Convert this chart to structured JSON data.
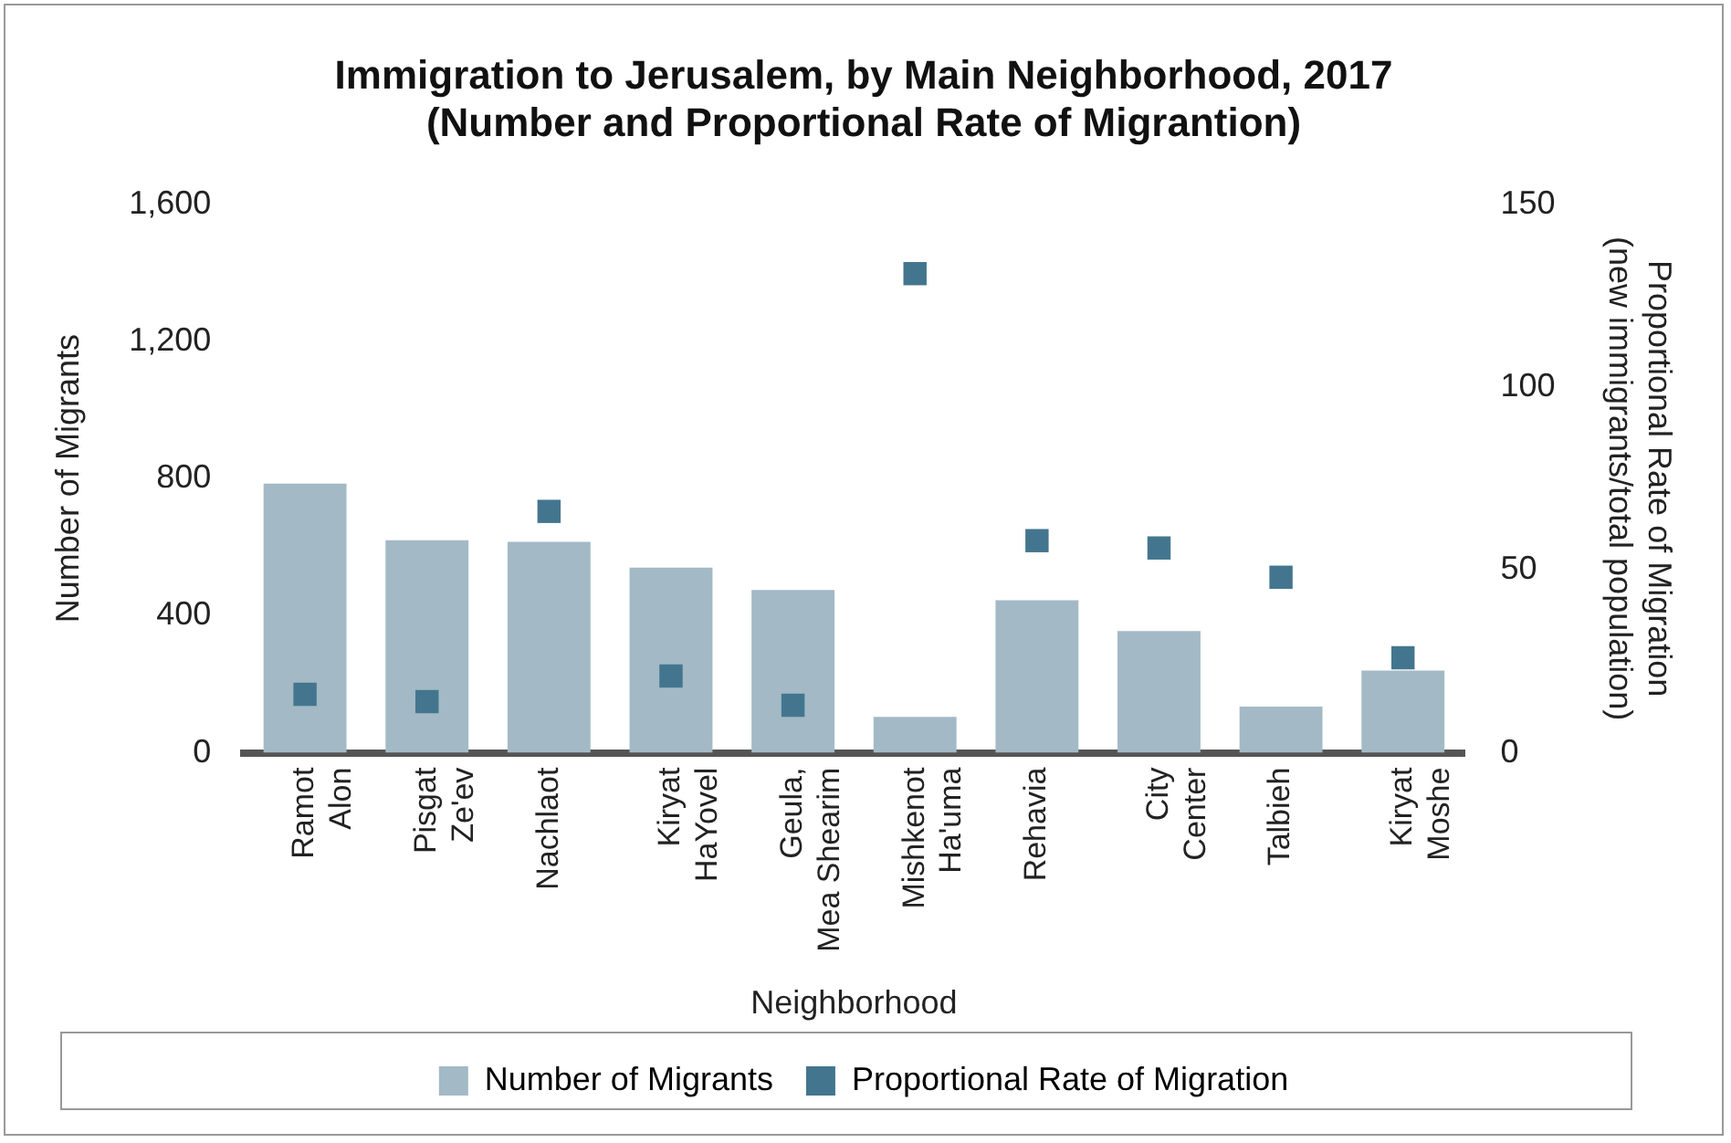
{
  "chart_data": {
    "type": "bar",
    "title": "Immigration to Jerusalem, by Main Neighborhood, 2017",
    "subtitle": "(Number and Proportional Rate of Migrantion)",
    "xlabel": "Neighborhood",
    "ylabel": "Number of Migrants",
    "y2label": "Proportional Rate of Migration (new immigrants/total population)",
    "categories": [
      "Ramot Alon",
      "Pisgat Ze'ev",
      "Nachlaot",
      "Kiryat HaYovel",
      "Geula, Mea Shearim",
      "Mishkenot Ha'uma",
      "Rehavia",
      "City Center",
      "Talbieh",
      "Kiryat Moshe"
    ],
    "series": [
      {
        "name": "Number of Migrants",
        "color": "#a3b9c5",
        "values": [
          785,
          620,
          615,
          540,
          475,
          105,
          445,
          355,
          135,
          240
        ]
      },
      {
        "name": "Proportional Rate of Migration",
        "type": "scatter",
        "axis": "y2",
        "color": "#43768e",
        "x": [
          "Ramot Alon",
          "Pisgat Ze'ev",
          "Nachlaot",
          "Kiryat HaYovel",
          "Geula, Mea Shearim",
          "Mishkenot Ha'uma",
          "Rehavia",
          "City Center",
          "Talbieh",
          "Kiryat Moshe"
        ],
        "values": [
          16,
          14,
          66,
          21,
          13,
          131,
          58,
          56,
          48,
          26
        ]
      }
    ],
    "ylim": [
      0,
      1600
    ],
    "yticks": [
      0,
      {
        "value": 400,
        "label": "400"
      },
      {
        "value": 800,
        "label": "800"
      },
      {
        "value": 1200,
        "label": "1,200"
      },
      {
        "value": 1600,
        "label": "1,600"
      }
    ],
    "y2lim": [
      0,
      150
    ],
    "y2ticks": [
      0,
      50,
      100,
      150
    ],
    "marker": "square",
    "grid": false,
    "legend": "bottom"
  }
}
